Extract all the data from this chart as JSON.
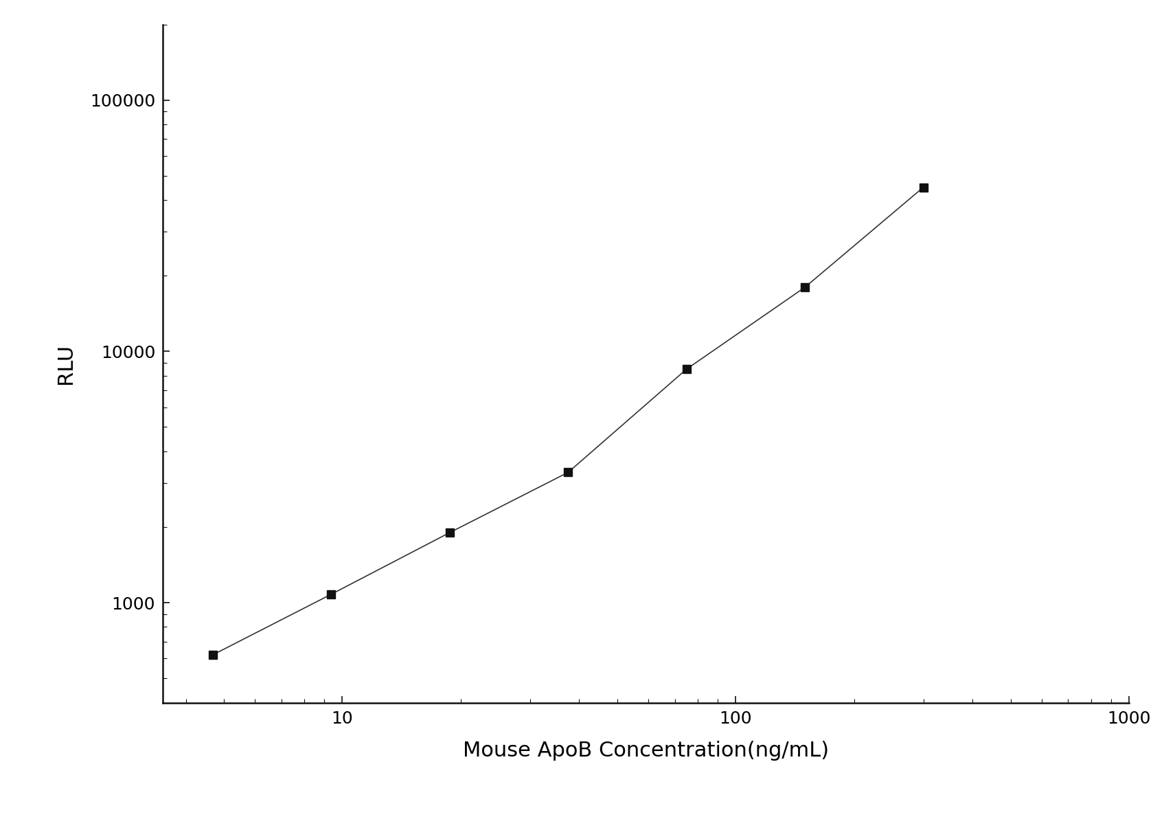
{
  "x_data": [
    4.688,
    9.375,
    18.75,
    37.5,
    75,
    150,
    300
  ],
  "y_data": [
    620,
    1080,
    1900,
    3300,
    8500,
    18000,
    45000
  ],
  "xlabel": "Mouse ApoB Concentration(ng/mL)",
  "ylabel": "RLU",
  "xlim_min": 3.5,
  "xlim_max": 1000,
  "ylim_min": 400,
  "ylim_max": 200000,
  "background_color": "#ffffff",
  "line_color": "#333333",
  "marker_color": "#111111",
  "marker_size": 9,
  "line_width": 1.2,
  "xlabel_fontsize": 22,
  "ylabel_fontsize": 22,
  "tick_fontsize": 18,
  "spine_color": "#111111"
}
